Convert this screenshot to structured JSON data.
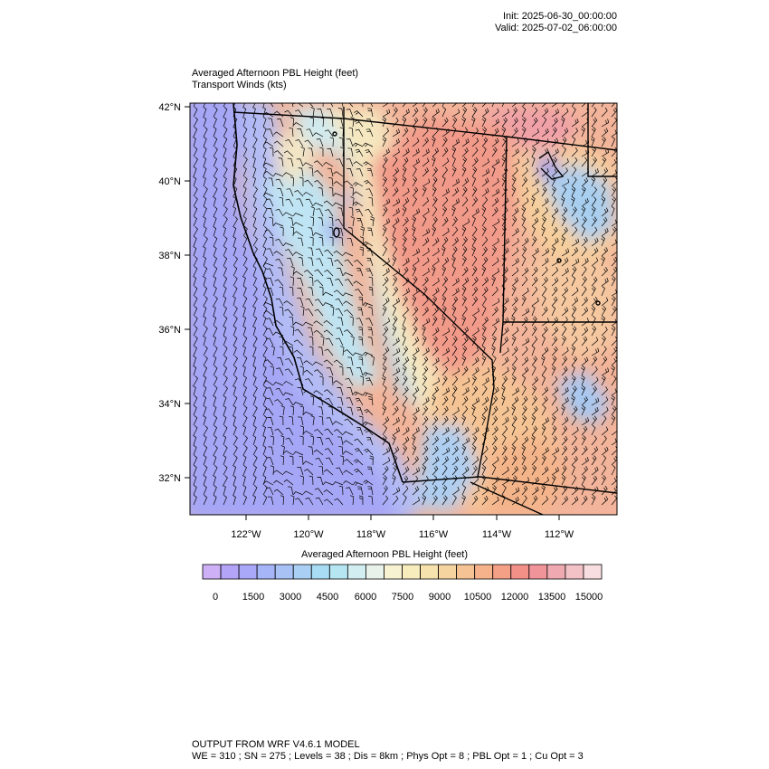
{
  "header": {
    "init": "Init: 2025-06-30_00:00:00",
    "valid": "Valid: 2025-07-02_06:00:00"
  },
  "titles": {
    "line1": "Averaged Afternoon PBL Height   (feet)",
    "line2": "Transport Winds   (kts)"
  },
  "map": {
    "lat_labels": [
      "42°N",
      "40°N",
      "38°N",
      "36°N",
      "34°N",
      "32°N"
    ],
    "lon_labels": [
      "122°W",
      "120°W",
      "118°W",
      "116°W",
      "114°W",
      "112°W"
    ]
  },
  "colorbar": {
    "title": "Averaged Afternoon PBL Height  (feet)",
    "labels": [
      "0",
      "1500",
      "3000",
      "4500",
      "6000",
      "7500",
      "9000",
      "10500",
      "12000",
      "13500",
      "15000"
    ],
    "colors": [
      "#cdb0f6",
      "#b3a4f8",
      "#a9a8f8",
      "#a6b4f8",
      "#a8c2f6",
      "#a9d0f4",
      "#a7dcf4",
      "#b6e6f2",
      "#d2eef0",
      "#e8f2ea",
      "#f7f2d2",
      "#f7ecbc",
      "#f6e2ac",
      "#f5d4a0",
      "#f6c494",
      "#f6b28a",
      "#f4a086",
      "#f29088",
      "#f0949a",
      "#eeaab0",
      "#f2c2c6",
      "#f8dee0"
    ]
  },
  "footer": {
    "line1": "OUTPUT FROM WRF V4.6.1 MODEL",
    "line2": "WE = 310 ; SN = 275 ; Levels = 38 ; Dis = 8km ; Phys Opt = 8 ; PBL Opt = 1 ; Cu Opt = 3"
  }
}
